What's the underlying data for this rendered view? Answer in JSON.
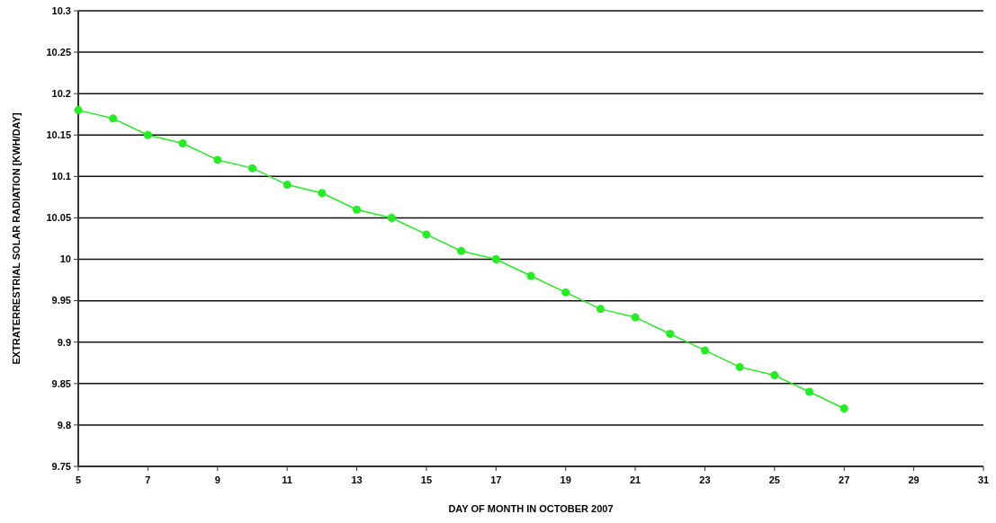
{
  "chart_data": {
    "type": "line",
    "xlabel": "DAY OF MONTH IN OCTOBER 2007",
    "ylabel": "EXTRATERRESTRIAL SOLAR RADIATION [KWH/DAY]",
    "x": [
      5,
      6,
      7,
      8,
      9,
      10,
      11,
      12,
      13,
      14,
      15,
      16,
      17,
      18,
      19,
      20,
      21,
      22,
      23,
      24,
      25,
      26,
      27
    ],
    "series": [
      {
        "color": "#22ee22",
        "values": [
          10.18,
          10.17,
          10.15,
          10.14,
          10.12,
          10.11,
          10.09,
          10.08,
          10.06,
          10.05,
          10.03,
          10.01,
          10.0,
          9.98,
          9.96,
          9.94,
          9.93,
          9.91,
          9.89,
          9.87,
          9.86,
          9.84,
          9.82
        ]
      }
    ],
    "xlim": [
      5,
      31
    ],
    "xticks": [
      5,
      7,
      9,
      11,
      13,
      15,
      17,
      19,
      21,
      23,
      25,
      27,
      29,
      31
    ],
    "ylim": [
      9.75,
      10.3
    ],
    "yticks": [
      9.75,
      9.8,
      9.85,
      9.9,
      9.95,
      10,
      10.05,
      10.1,
      10.15,
      10.2,
      10.25,
      10.3
    ],
    "grid": "y",
    "marker": "circle",
    "line_style": "solid"
  }
}
